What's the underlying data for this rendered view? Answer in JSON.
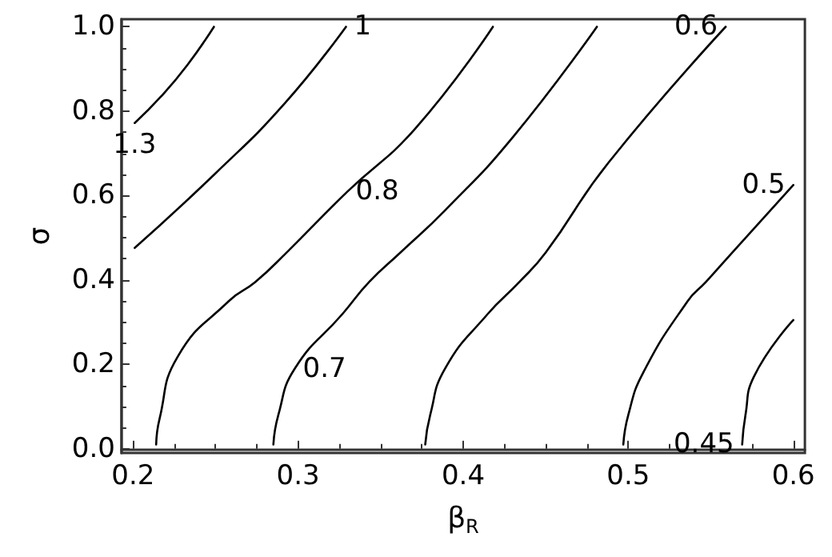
{
  "chart_data": {
    "type": "line",
    "xlabel": "β$_{R}$",
    "ylabel": "σ",
    "xlim": [
      0.193,
      0.607
    ],
    "xticks": [
      0.2,
      0.3,
      0.4,
      0.5,
      0.6
    ],
    "ylim": [
      -0.01,
      1.018
    ],
    "yticks": [
      {
        "value": 0,
        "label": "0.0"
      },
      0.2,
      0.4,
      0.6,
      0.8,
      {
        "value": 1,
        "label": "1.0"
      }
    ],
    "grid": false,
    "legend": false,
    "marker": "none",
    "line_style": "solid",
    "series": [
      {
        "name": "1.3",
        "color": "#000000",
        "x": [
          0.201,
          0.217,
          0.233,
          0.249
        ],
        "values": [
          0.772,
          0.835,
          0.91,
          1.0
        ]
      },
      {
        "name": "1",
        "color": "#000000",
        "x": [
          0.201,
          0.25,
          0.292,
          0.329
        ],
        "values": [
          0.476,
          0.653,
          0.819,
          1.0
        ]
      },
      {
        "name": "0.8",
        "color": "#000000",
        "x": [
          0.214,
          0.216,
          0.227,
          0.258,
          0.274,
          0.293,
          0.33,
          0.371,
          0.418
        ],
        "values": [
          0.01,
          0.07,
          0.218,
          0.35,
          0.395,
          0.465,
          0.61,
          0.759,
          1.0
        ]
      },
      {
        "name": "0.7",
        "color": "#000000",
        "x": [
          0.285,
          0.288,
          0.298,
          0.327,
          0.343,
          0.362,
          0.389,
          0.43,
          0.481
        ],
        "values": [
          0.01,
          0.08,
          0.19,
          0.32,
          0.395,
          0.465,
          0.565,
          0.738,
          1.0
        ]
      },
      {
        "name": "0.6",
        "color": "#000000",
        "x": [
          0.377,
          0.38,
          0.389,
          0.415,
          0.434,
          0.45,
          0.488,
          0.559
        ],
        "values": [
          0.01,
          0.08,
          0.19,
          0.32,
          0.395,
          0.465,
          0.678,
          1.0
        ]
      },
      {
        "name": "0.5",
        "color": "#000000",
        "x": [
          0.497,
          0.5,
          0.509,
          0.536,
          0.547,
          0.563,
          0.6
        ],
        "values": [
          0.01,
          0.08,
          0.18,
          0.35,
          0.395,
          0.465,
          0.625
        ]
      },
      {
        "name": "0.45",
        "color": "#000000",
        "x": [
          0.569,
          0.571,
          0.576,
          0.6
        ],
        "values": [
          0.01,
          0.08,
          0.17,
          0.305
        ]
      }
    ]
  }
}
